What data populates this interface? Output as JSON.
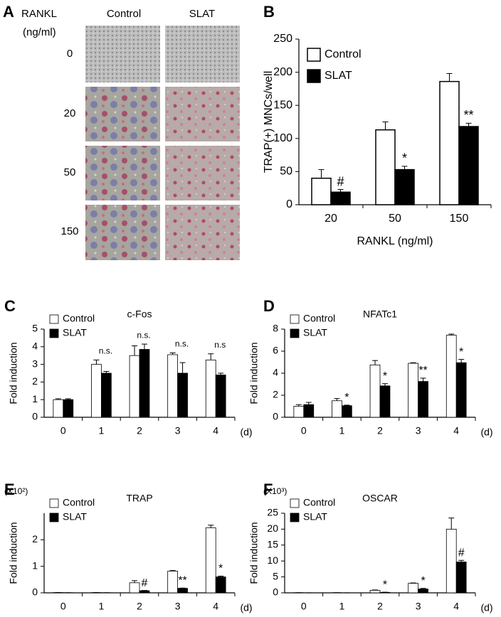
{
  "panel_a": {
    "panel": "A",
    "row_header": "RANKL",
    "row_unit": "(ng/ml)",
    "columns": [
      "Control",
      "SLAT"
    ],
    "rows": [
      "0",
      "20",
      "50",
      "150"
    ]
  },
  "chart_data": [
    {
      "type": "bar",
      "panel": "B",
      "ylabel": "TRAP(+) MNCs/well",
      "xlabel": "RANKL (ng/ml)",
      "categories": [
        "20",
        "50",
        "150"
      ],
      "series": [
        {
          "name": "Control",
          "color": "#ffffff",
          "values": [
            40,
            113,
            186
          ],
          "errors": [
            13,
            12,
            12
          ]
        },
        {
          "name": "SLAT",
          "color": "#000000",
          "values": [
            19,
            53,
            118
          ],
          "errors": [
            4,
            5,
            5
          ],
          "annotations": [
            "#",
            "*",
            "**"
          ]
        }
      ],
      "ylim": [
        0,
        250
      ],
      "yticks": [
        0,
        50,
        100,
        150,
        200,
        250
      ],
      "legend": "upper-left"
    },
    {
      "type": "bar",
      "panel": "C",
      "title": "c-Fos",
      "ylabel": "Fold induction",
      "xlabel": "(d)",
      "categories": [
        "0",
        "1",
        "2",
        "3",
        "4"
      ],
      "series": [
        {
          "name": "Control",
          "color": "#ffffff",
          "values": [
            1.0,
            3.0,
            3.5,
            3.55,
            3.25
          ],
          "errors": [
            0.05,
            0.25,
            0.55,
            0.1,
            0.35
          ]
        },
        {
          "name": "SLAT",
          "color": "#000000",
          "values": [
            1.0,
            2.5,
            3.85,
            2.5,
            2.4
          ],
          "errors": [
            0.05,
            0.1,
            0.3,
            0.6,
            0.1
          ],
          "annotations": [
            null,
            "n.s.",
            "n.s.",
            "n.s.",
            "n.s"
          ]
        }
      ],
      "ylim": [
        0,
        5
      ],
      "yticks": [
        0,
        1,
        2,
        3,
        4,
        5
      ],
      "legend": "upper-left"
    },
    {
      "type": "bar",
      "panel": "D",
      "title": "NFATc1",
      "ylabel": "Fold induction",
      "xlabel": "(d)",
      "categories": [
        "0",
        "1",
        "2",
        "3",
        "4"
      ],
      "series": [
        {
          "name": "Control",
          "color": "#ffffff",
          "values": [
            1.0,
            1.5,
            4.75,
            4.9,
            7.45
          ],
          "errors": [
            0.15,
            0.2,
            0.4,
            0.05,
            0.1
          ]
        },
        {
          "name": "SLAT",
          "color": "#000000",
          "values": [
            1.15,
            1.05,
            2.85,
            3.25,
            4.95
          ],
          "errors": [
            0.2,
            0.05,
            0.2,
            0.3,
            0.3
          ],
          "annotations": [
            null,
            "*",
            "*",
            "**",
            "*"
          ]
        }
      ],
      "ylim": [
        0,
        8
      ],
      "yticks": [
        0,
        2,
        4,
        6,
        8
      ],
      "legend": "upper-left"
    },
    {
      "type": "bar",
      "panel": "E",
      "title": "TRAP",
      "ylabel": "Fold induction",
      "yscale_label": "(X10²)",
      "xlabel": "(d)",
      "categories": [
        "0",
        "1",
        "2",
        "3",
        "4"
      ],
      "series": [
        {
          "name": "Control",
          "color": "#ffffff",
          "values": [
            0.01,
            0.01,
            0.38,
            0.82,
            2.45
          ],
          "errors": [
            0,
            0,
            0.08,
            0.02,
            0.1
          ]
        },
        {
          "name": "SLAT",
          "color": "#000000",
          "values": [
            0.005,
            0.005,
            0.08,
            0.17,
            0.6
          ],
          "errors": [
            0,
            0,
            0.01,
            0.01,
            0.03
          ],
          "annotations": [
            null,
            null,
            "#",
            "**",
            "*"
          ]
        }
      ],
      "ylim": [
        0,
        3
      ],
      "yticks": [
        0,
        1,
        2
      ],
      "legend": "upper-left"
    },
    {
      "type": "bar",
      "panel": "F",
      "title": "OSCAR",
      "ylabel": "Fold induction",
      "yscale_label": "(X10³)",
      "xlabel": "(d)",
      "categories": [
        "0",
        "1",
        "2",
        "3",
        "4"
      ],
      "series": [
        {
          "name": "Control",
          "color": "#ffffff",
          "values": [
            0.05,
            0.05,
            0.8,
            3.0,
            20.0
          ],
          "errors": [
            0,
            0,
            0.1,
            0.1,
            3.5
          ]
        },
        {
          "name": "SLAT",
          "color": "#000000",
          "values": [
            0.02,
            0.02,
            0.15,
            1.2,
            9.7
          ],
          "errors": [
            0,
            0,
            0.05,
            0.2,
            0.5
          ],
          "annotations": [
            null,
            null,
            "*",
            "*",
            "#"
          ]
        }
      ],
      "ylim": [
        0,
        25
      ],
      "yticks": [
        0,
        5,
        10,
        15,
        20,
        25
      ],
      "legend": "upper-left"
    }
  ]
}
